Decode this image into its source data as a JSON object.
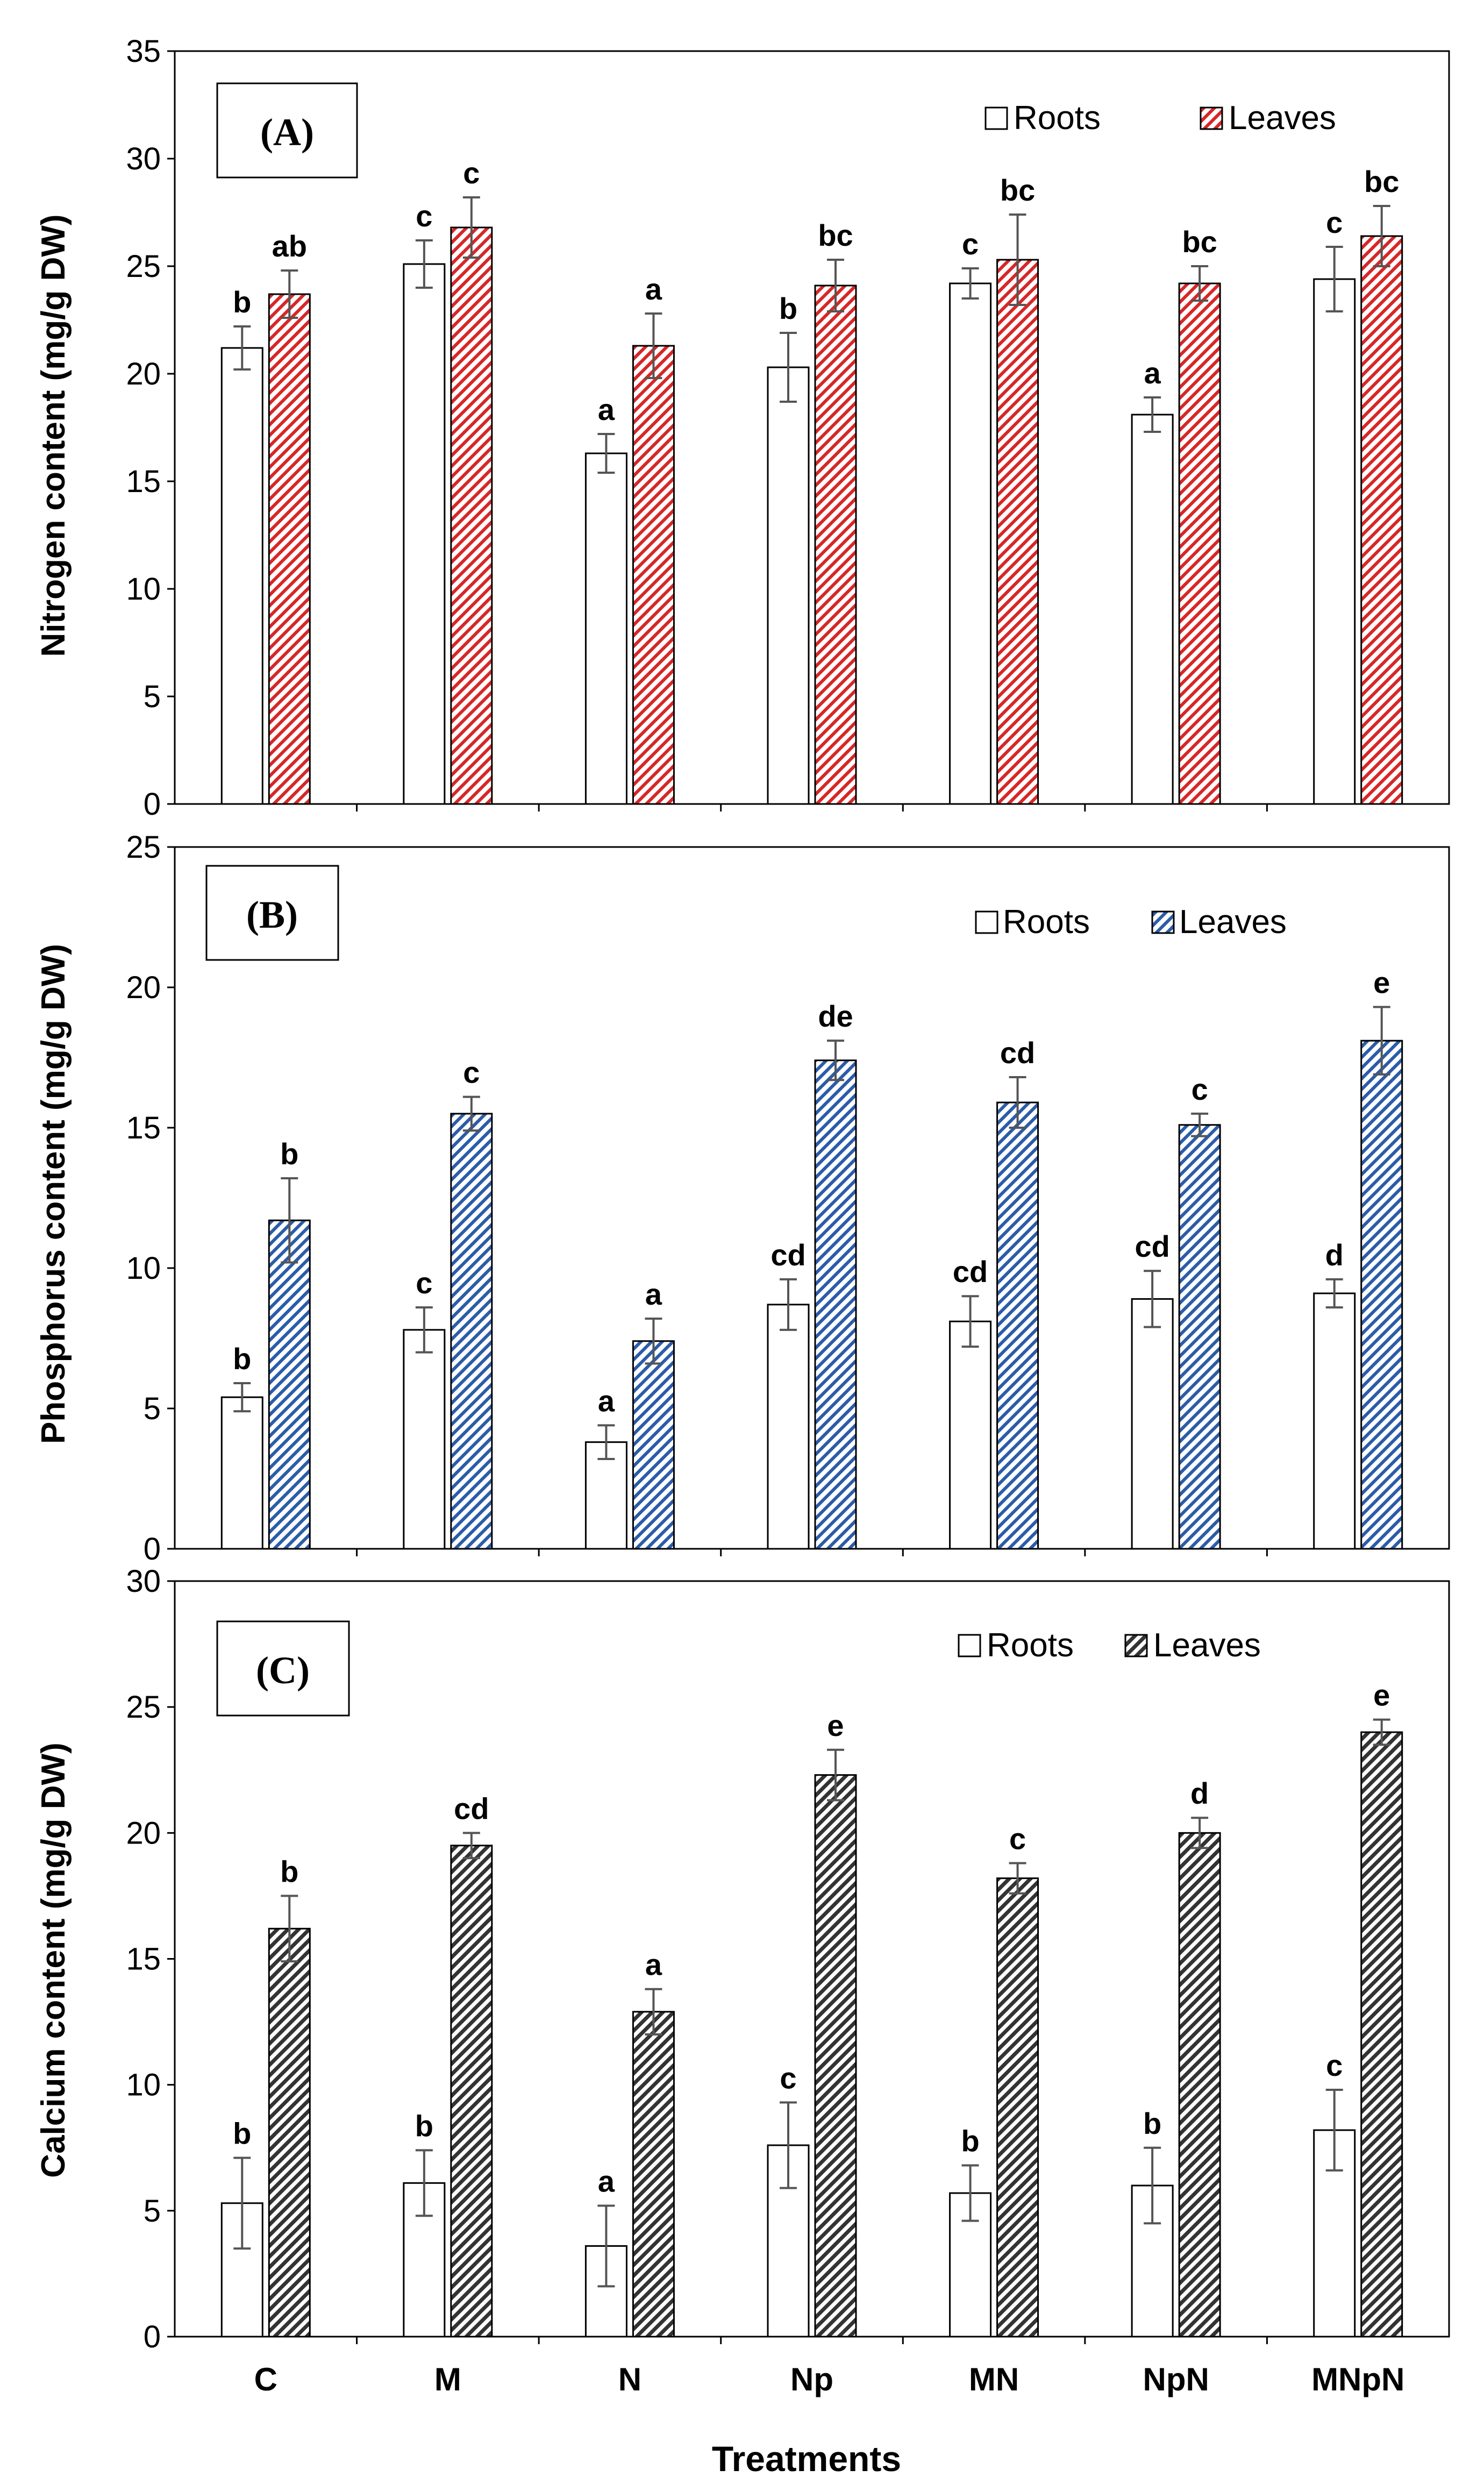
{
  "figure": {
    "xlabel": "Treatments",
    "colors": {
      "red": "#d62728",
      "blue": "#2b5ca8",
      "dark": "#333333",
      "axis": "#000000",
      "err": "#555555"
    }
  },
  "chart_data": [
    {
      "type": "bar",
      "panel_label": "(A)",
      "ylabel": "Nitrogen content (mg/g DW)",
      "ylim": [
        0,
        35
      ],
      "yticks": [
        0,
        5,
        10,
        15,
        20,
        25,
        30,
        35
      ],
      "categories": [
        "C",
        "M",
        "N",
        "Np",
        "MN",
        "NpN",
        "MNpN"
      ],
      "legend_position": "top-right",
      "series": [
        {
          "name": "Roots",
          "pattern": "plain",
          "values": [
            21.2,
            25.1,
            16.3,
            20.3,
            24.2,
            18.1,
            24.4
          ],
          "errors": [
            1.0,
            1.1,
            0.9,
            1.6,
            0.7,
            0.8,
            1.5
          ],
          "labels": [
            "b",
            "c",
            "a",
            "b",
            "c",
            "a",
            "c"
          ]
        },
        {
          "name": "Leaves",
          "pattern": "red-hatch",
          "values": [
            23.7,
            26.8,
            21.3,
            24.1,
            25.3,
            24.2,
            26.4
          ],
          "errors": [
            1.1,
            1.4,
            1.5,
            1.2,
            2.1,
            0.8,
            1.4
          ],
          "labels": [
            "ab",
            "c",
            "a",
            "bc",
            "bc",
            "bc",
            "bc"
          ]
        }
      ]
    },
    {
      "type": "bar",
      "panel_label": "(B)",
      "ylabel": "Phosphorus content (mg/g DW)",
      "ylim": [
        0,
        25
      ],
      "yticks": [
        0,
        5,
        10,
        15,
        20,
        25
      ],
      "categories": [
        "C",
        "M",
        "N",
        "Np",
        "MN",
        "NpN",
        "MNpN"
      ],
      "legend_position": "top-right",
      "series": [
        {
          "name": "Roots",
          "pattern": "plain",
          "values": [
            5.4,
            7.8,
            3.8,
            8.7,
            8.1,
            8.9,
            9.1
          ],
          "errors": [
            0.5,
            0.8,
            0.6,
            0.9,
            0.9,
            1.0,
            0.5
          ],
          "labels": [
            "b",
            "c",
            "a",
            "cd",
            "cd",
            "cd",
            "d"
          ]
        },
        {
          "name": "Leaves",
          "pattern": "blue-hatch",
          "values": [
            11.7,
            15.5,
            7.4,
            17.4,
            15.9,
            15.1,
            18.1
          ],
          "errors": [
            1.5,
            0.6,
            0.8,
            0.7,
            0.9,
            0.4,
            1.2
          ],
          "labels": [
            "b",
            "c",
            "a",
            "de",
            "cd",
            "c",
            "e"
          ]
        }
      ]
    },
    {
      "type": "bar",
      "panel_label": "(C)",
      "ylabel": "Calcium content (mg/g DW)",
      "ylim": [
        0,
        30
      ],
      "yticks": [
        0,
        5,
        10,
        15,
        20,
        25,
        30
      ],
      "categories": [
        "C",
        "M",
        "N",
        "Np",
        "MN",
        "NpN",
        "MNpN"
      ],
      "show_categories": true,
      "legend_position": "top-right",
      "series": [
        {
          "name": "Roots",
          "pattern": "plain",
          "values": [
            5.3,
            6.1,
            3.6,
            7.6,
            5.7,
            6.0,
            8.2
          ],
          "errors": [
            1.8,
            1.3,
            1.6,
            1.7,
            1.1,
            1.5,
            1.6
          ],
          "labels": [
            "b",
            "b",
            "a",
            "c",
            "b",
            "b",
            "c"
          ]
        },
        {
          "name": "Leaves",
          "pattern": "dark-hatch",
          "values": [
            16.2,
            19.5,
            12.9,
            22.3,
            18.2,
            20.0,
            24.0
          ],
          "errors": [
            1.3,
            0.5,
            0.9,
            1.0,
            0.6,
            0.6,
            0.5
          ],
          "labels": [
            "b",
            "cd",
            "a",
            "e",
            "c",
            "d",
            "e"
          ]
        }
      ]
    }
  ]
}
